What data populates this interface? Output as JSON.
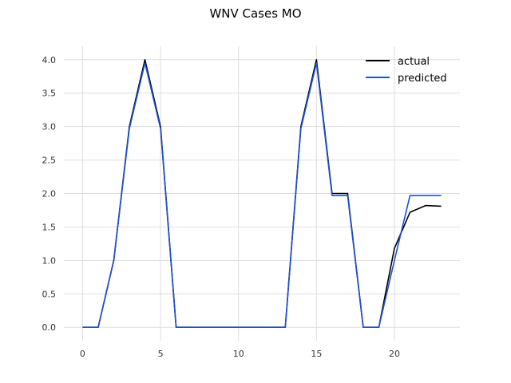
{
  "chart_data": {
    "type": "line",
    "title": "WNV Cases MO",
    "xlabel": "",
    "ylabel": "",
    "xlim": [
      -1.2,
      24.2
    ],
    "ylim": [
      -0.2,
      4.2
    ],
    "x_ticks": [
      0,
      5,
      10,
      15,
      20
    ],
    "y_ticks": [
      0.0,
      0.5,
      1.0,
      1.5,
      2.0,
      2.5,
      3.0,
      3.5,
      4.0
    ],
    "grid": true,
    "legend_position": "top-right",
    "x": [
      0,
      1,
      2,
      3,
      4,
      5,
      6,
      7,
      8,
      9,
      10,
      11,
      12,
      13,
      14,
      15,
      16,
      17,
      18,
      19,
      20,
      21,
      22,
      23
    ],
    "series": [
      {
        "name": "actual",
        "color": "#000000",
        "values": [
          0,
          0,
          1,
          3,
          4,
          3,
          0,
          0,
          0,
          0,
          0,
          0,
          0,
          0,
          3,
          4,
          2,
          2,
          0,
          0,
          1.18,
          1.72,
          1.82,
          1.81
        ]
      },
      {
        "name": "predicted",
        "color": "#1f4fd6",
        "values": [
          0,
          0,
          1,
          2.97,
          3.95,
          2.97,
          0,
          0,
          0,
          0,
          0,
          0,
          0,
          0,
          2.97,
          3.95,
          1.97,
          1.97,
          0,
          0,
          1.0,
          1.97,
          1.97,
          1.97
        ]
      }
    ]
  }
}
